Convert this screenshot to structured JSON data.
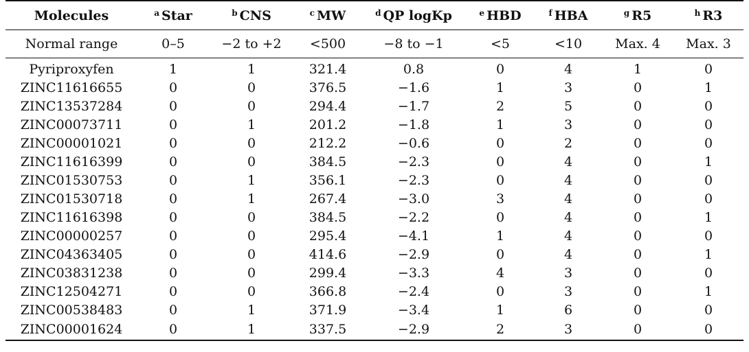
{
  "table": {
    "headers": [
      {
        "sup": "",
        "label": "Molecules"
      },
      {
        "sup": "a",
        "label": "Star"
      },
      {
        "sup": "b",
        "label": "CNS"
      },
      {
        "sup": "c",
        "label": "MW"
      },
      {
        "sup": "d",
        "label": "QP logKp"
      },
      {
        "sup": "e",
        "label": "HBD"
      },
      {
        "sup": "f",
        "label": "HBA"
      },
      {
        "sup": "g",
        "label": "R5"
      },
      {
        "sup": "h",
        "label": "R3"
      }
    ],
    "normal_range": [
      "Normal range",
      "0–5",
      "−2 to +2",
      "<500",
      "−8 to −1",
      "<5",
      "<10",
      "Max. 4",
      "Max. 3"
    ],
    "rows": [
      [
        "Pyriproxyfen",
        "1",
        "1",
        "321.4",
        "0.8",
        "0",
        "4",
        "1",
        "0"
      ],
      [
        "ZINC11616655",
        "0",
        "0",
        "376.5",
        "−1.6",
        "1",
        "3",
        "0",
        "1"
      ],
      [
        "ZINC13537284",
        "0",
        "0",
        "294.4",
        "−1.7",
        "2",
        "5",
        "0",
        "0"
      ],
      [
        "ZINC00073711",
        "0",
        "1",
        "201.2",
        "−1.8",
        "1",
        "3",
        "0",
        "0"
      ],
      [
        "ZINC00001021",
        "0",
        "0",
        "212.2",
        "−0.6",
        "0",
        "2",
        "0",
        "0"
      ],
      [
        "ZINC11616399",
        "0",
        "0",
        "384.5",
        "−2.3",
        "0",
        "4",
        "0",
        "1"
      ],
      [
        "ZINC01530753",
        "0",
        "1",
        "356.1",
        "−2.3",
        "0",
        "4",
        "0",
        "0"
      ],
      [
        "ZINC01530718",
        "0",
        "1",
        "267.4",
        "−3.0",
        "3",
        "4",
        "0",
        "0"
      ],
      [
        "ZINC11616398",
        "0",
        "0",
        "384.5",
        "−2.2",
        "0",
        "4",
        "0",
        "1"
      ],
      [
        "ZINC00000257",
        "0",
        "0",
        "295.4",
        "−4.1",
        "1",
        "4",
        "0",
        "0"
      ],
      [
        "ZINC04363405",
        "0",
        "0",
        "414.6",
        "−2.9",
        "0",
        "4",
        "0",
        "1"
      ],
      [
        "ZINC03831238",
        "0",
        "0",
        "299.4",
        "−3.3",
        "4",
        "3",
        "0",
        "0"
      ],
      [
        "ZINC12504271",
        "0",
        "0",
        "366.8",
        "−2.4",
        "0",
        "3",
        "0",
        "1"
      ],
      [
        "ZINC00538483",
        "0",
        "1",
        "371.9",
        "−3.4",
        "1",
        "6",
        "0",
        "0"
      ],
      [
        "ZINC00001624",
        "0",
        "1",
        "337.5",
        "−2.9",
        "2",
        "3",
        "0",
        "0"
      ]
    ]
  }
}
